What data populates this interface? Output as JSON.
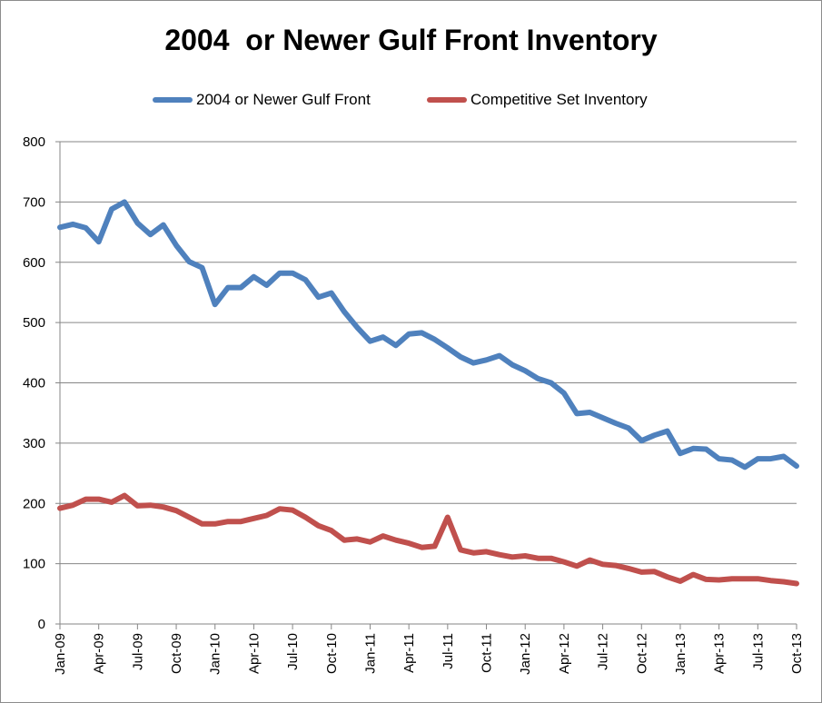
{
  "chart_data": {
    "type": "line",
    "title": "2004  or Newer Gulf Front Inventory",
    "xlabel": "",
    "ylabel": "",
    "ylim": [
      0,
      800
    ],
    "yticks": [
      "0",
      "100",
      "200",
      "300",
      "400",
      "500",
      "600",
      "700",
      "800"
    ],
    "grid": "horizontal",
    "legend_position": "top",
    "x": [
      "Jan-09",
      "Feb-09",
      "Mar-09",
      "Apr-09",
      "May-09",
      "Jun-09",
      "Jul-09",
      "Aug-09",
      "Sep-09",
      "Oct-09",
      "Nov-09",
      "Dec-09",
      "Jan-10",
      "Feb-10",
      "Mar-10",
      "Apr-10",
      "May-10",
      "Jun-10",
      "Jul-10",
      "Aug-10",
      "Sep-10",
      "Oct-10",
      "Nov-10",
      "Dec-10",
      "Jan-11",
      "Feb-11",
      "Mar-11",
      "Apr-11",
      "May-11",
      "Jun-11",
      "Jul-11",
      "Aug-11",
      "Sep-11",
      "Oct-11",
      "Nov-11",
      "Dec-11",
      "Jan-12",
      "Feb-12",
      "Mar-12",
      "Apr-12",
      "May-12",
      "Jun-12",
      "Jul-12",
      "Aug-12",
      "Sep-12",
      "Oct-12",
      "Nov-12",
      "Dec-12",
      "Jan-13",
      "Feb-13",
      "Mar-13",
      "Apr-13",
      "May-13",
      "Jun-13",
      "Jul-13",
      "Aug-13",
      "Sep-13",
      "Oct-13"
    ],
    "xtick_labels": [
      "Jan-09",
      "Apr-09",
      "Jul-09",
      "Oct-09",
      "Jan-10",
      "Apr-10",
      "Jul-10",
      "Oct-10",
      "Jan-11",
      "Apr-11",
      "Jul-11",
      "Oct-11",
      "Jan-12",
      "Apr-12",
      "Jul-12",
      "Oct-12",
      "Jan-13",
      "Apr-13",
      "Jul-13",
      "Oct-13"
    ],
    "series": [
      {
        "name": "2004 or Newer Gulf Front",
        "color": "#4f81bd",
        "values": [
          658,
          663,
          657,
          634,
          688,
          700,
          665,
          646,
          662,
          628,
          601,
          591,
          530,
          558,
          558,
          576,
          562,
          582,
          582,
          571,
          542,
          549,
          518,
          492,
          469,
          476,
          462,
          481,
          483,
          472,
          458,
          443,
          433,
          438,
          445,
          430,
          420,
          407,
          400,
          383,
          349,
          351,
          342,
          333,
          325,
          304,
          313,
          320,
          283,
          291,
          290,
          274,
          272,
          260,
          274,
          274,
          278,
          262
        ]
      },
      {
        "name": "Competitive Set Inventory",
        "color": "#c0504d",
        "values": [
          192,
          197,
          207,
          207,
          202,
          213,
          196,
          197,
          194,
          188,
          177,
          166,
          166,
          170,
          170,
          175,
          180,
          191,
          189,
          177,
          163,
          155,
          139,
          141,
          136,
          146,
          139,
          134,
          127,
          129,
          177,
          123,
          118,
          120,
          115,
          111,
          113,
          109,
          109,
          103,
          96,
          106,
          99,
          97,
          92,
          86,
          87,
          78,
          71,
          82,
          74,
          73,
          75,
          75,
          75,
          72,
          70,
          67
        ]
      }
    ]
  }
}
